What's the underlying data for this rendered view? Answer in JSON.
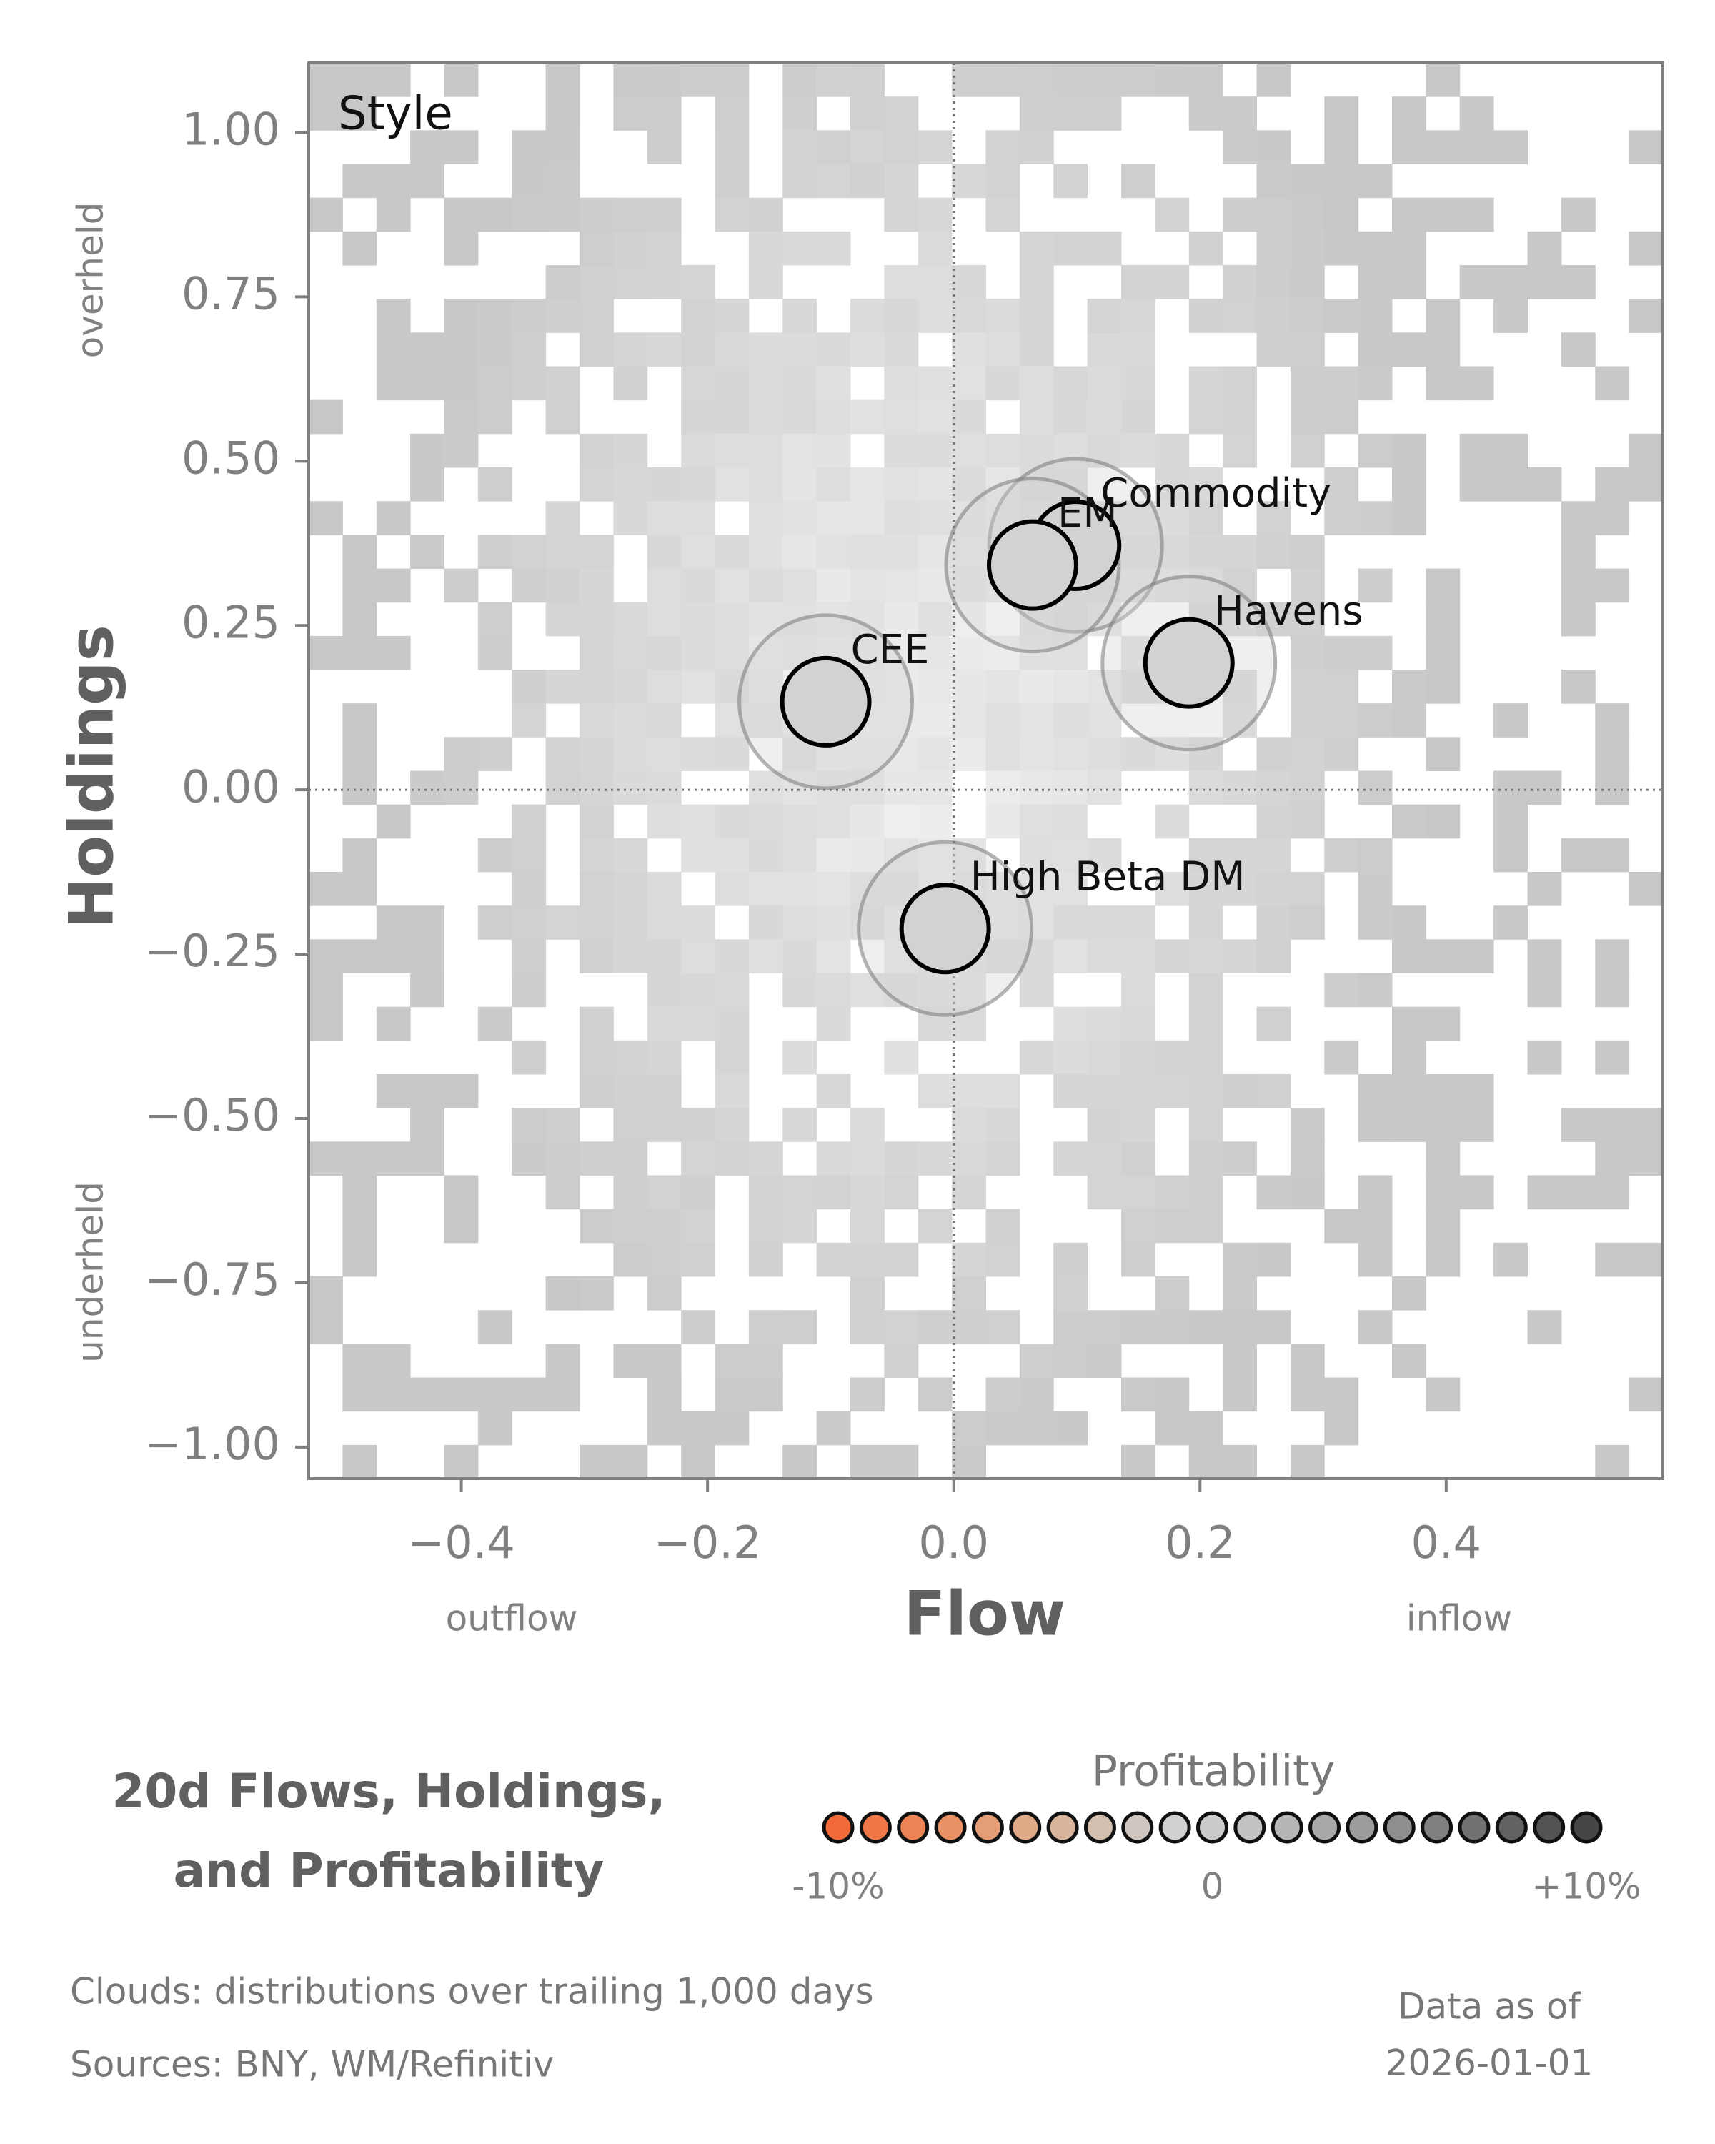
{
  "chart_data": {
    "type": "scatter",
    "panel_label": "Style",
    "title": [
      "20d Flows, Holdings,",
      "and Profitability"
    ],
    "x_label": "Flow",
    "y_label": "Holdings",
    "x_annotations": [
      "outflow",
      "inflow"
    ],
    "y_annotations": [
      "overheld",
      "underheld"
    ],
    "xlim": [
      -0.524,
      0.576
    ],
    "ylim": [
      -1.048,
      1.106
    ],
    "xticks": [
      {
        "value": -0.4,
        "label": "−0.4"
      },
      {
        "value": -0.2,
        "label": "−0.2"
      },
      {
        "value": 0,
        "label": "0.0"
      },
      {
        "value": 0.2,
        "label": "0.2"
      },
      {
        "value": 0.4,
        "label": "0.4"
      }
    ],
    "yticks": [
      {
        "value": 1,
        "label": "1.00"
      },
      {
        "value": 0.75,
        "label": "0.75"
      },
      {
        "value": 0.5,
        "label": "0.50"
      },
      {
        "value": 0.25,
        "label": "0.25"
      },
      {
        "value": 0,
        "label": "0.00"
      },
      {
        "value": -0.25,
        "label": "−0.25"
      },
      {
        "value": -0.5,
        "label": "−0.50"
      },
      {
        "value": -0.75,
        "label": "−0.75"
      },
      {
        "value": -1,
        "label": "−1.00"
      }
    ],
    "reference_lines": true,
    "points": {
      "labels": [
        "CEE",
        "Commodity",
        "Havens",
        "EM",
        "High Beta DM"
      ],
      "x": [
        -0.104,
        0.099,
        0.191,
        0.064,
        -0.007
      ],
      "values": [
        0.134,
        0.372,
        0.193,
        0.342,
        -0.211
      ],
      "color": "#d2d2d2"
    },
    "colorbar": {
      "title": "Profitability",
      "lim": [
        -10,
        10
      ],
      "colors": [
        "#f26a3a",
        "#f07748",
        "#ee8456",
        "#ea9165",
        "#e59d76",
        "#dfaa88",
        "#d8b59a",
        "#d3bfad",
        "#d0c8c0",
        "#d0d0d0",
        "#cbcbcb",
        "#c2c2c2",
        "#b6b6b6",
        "#a9a9a9",
        "#9c9c9c",
        "#8e8e8e",
        "#808080",
        "#717171",
        "#626262",
        "#535353",
        "#454545"
      ],
      "ticks": [
        {
          "value": -10,
          "label": "-10%"
        },
        {
          "value": 0,
          "label": "0"
        },
        {
          "value": 10,
          "label": "+10%"
        }
      ]
    },
    "footnotes": [
      "Clouds:  distributions over trailing 1,000 days",
      "Sources:  BNY, WM/Refinitiv"
    ],
    "as_of": [
      "Data as of",
      "2026-01-01"
    ]
  }
}
